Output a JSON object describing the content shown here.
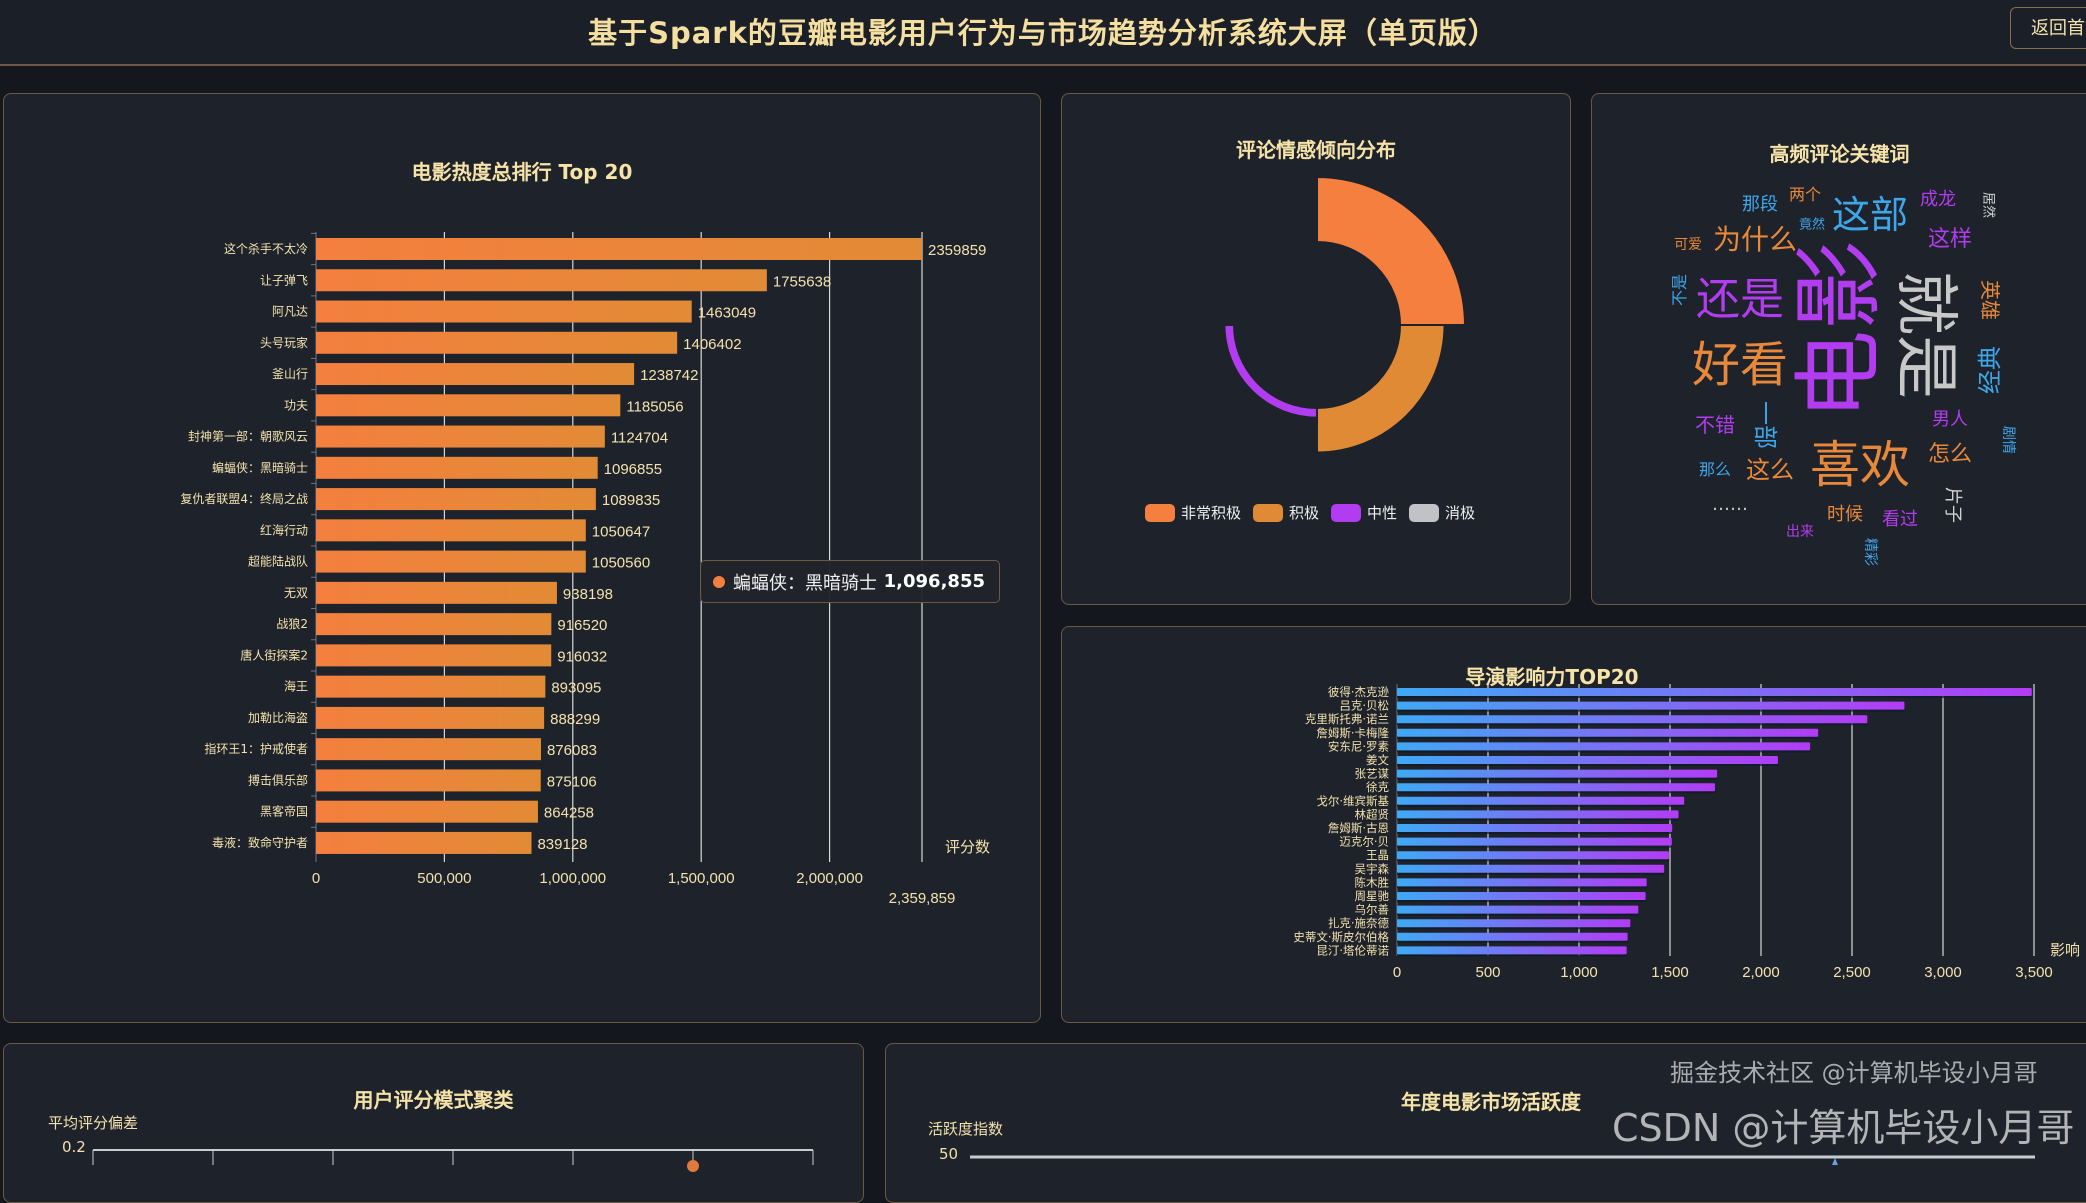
{
  "header": {
    "title": "基于Spark的豆瓣电影用户行为与市场趋势分析系统大屏（单页版）",
    "back_button": "返回首页"
  },
  "colors": {
    "accent_orange": "#f47f3e",
    "bar_orange_end": "#e28b36",
    "director_start": "#3fa9f5",
    "director_end": "#b23cf5",
    "title": "#f5e3a8",
    "panel_border": "#6b5843"
  },
  "popularity": {
    "title": "电影热度总排行 Top 20",
    "chart_data": {
      "type": "bar",
      "orientation": "horizontal",
      "categories": [
        "这个杀手不太冷",
        "让子弹飞",
        "阿凡达",
        "头号玩家",
        "釜山行",
        "功夫",
        "封神第一部：朝歌风云",
        "蝙蝠侠：黑暗骑士",
        "复仇者联盟4：终局之战",
        "红海行动",
        "超能陆战队",
        "无双",
        "战狼2",
        "唐人街探案2",
        "海王",
        "加勒比海盗",
        "指环王1：护戒使者",
        "搏击俱乐部",
        "黑客帝国",
        "毒液：致命守护者"
      ],
      "values": [
        2359859,
        1755638,
        1463049,
        1406402,
        1238742,
        1185056,
        1124704,
        1096855,
        1089835,
        1050647,
        1050560,
        938198,
        916520,
        916032,
        893095,
        888299,
        876083,
        875106,
        864258,
        839128
      ],
      "value_labels": [
        "2359859",
        "1755638",
        "1463049",
        "1406402",
        "1238742",
        "1185056",
        "1124704",
        "1096855",
        "1089835",
        "1050647",
        "1050560",
        "938198",
        "916520",
        "916032",
        "893095",
        "888299",
        "876083",
        "875106",
        "864258",
        "839128"
      ],
      "xlabel": "评分数",
      "xlim": [
        0,
        2359859
      ],
      "x_ticks": [
        "0",
        "500,000",
        "1,000,000",
        "1,500,000",
        "2,000,000",
        "2,359,859"
      ],
      "x_tick_values": [
        0,
        500000,
        1000000,
        1500000,
        2000000,
        2359859
      ],
      "grid": true
    },
    "tooltip": {
      "name": "蝙蝠侠：黑暗骑士",
      "value": "1,096,855"
    }
  },
  "sentiment": {
    "title": "评论情感倾向分布",
    "chart_data": {
      "type": "pie",
      "rose": true,
      "categories": [
        "非常积极",
        "积极",
        "中性",
        "消极"
      ],
      "values": [
        54,
        37,
        8,
        1
      ],
      "colors": [
        "#f47f3e",
        "#e08a35",
        "#b13cf0",
        "#c0c2c6"
      ],
      "legend_placement": "bottom"
    }
  },
  "wordcloud": {
    "title": "高频评论关键词",
    "words": [
      {
        "text": "电影",
        "color": "#b13cf0"
      },
      {
        "text": "就是",
        "color": "#c8c8c8"
      },
      {
        "text": "还是",
        "color": "#b13cf0"
      },
      {
        "text": "好看",
        "color": "#e8883a"
      },
      {
        "text": "喜欢",
        "color": "#e8883a"
      },
      {
        "text": "这部",
        "color": "#3ea6ea"
      },
      {
        "text": "为什么",
        "color": "#e8883a"
      },
      {
        "text": "这样",
        "color": "#b13cf0"
      },
      {
        "text": "英雄",
        "color": "#e8883a"
      },
      {
        "text": "经典",
        "color": "#3ea6ea"
      },
      {
        "text": "男人",
        "color": "#b13cf0"
      },
      {
        "text": "怎么",
        "color": "#e8883a"
      },
      {
        "text": "剧情",
        "color": "#3ea6ea"
      },
      {
        "text": "片子",
        "color": "#d0d0d0"
      },
      {
        "text": "看过",
        "color": "#b13cf0"
      },
      {
        "text": "时候",
        "color": "#e8883a"
      },
      {
        "text": "这么",
        "color": "#e8883a"
      },
      {
        "text": "那么",
        "color": "#3ea6ea"
      },
      {
        "text": "出来",
        "color": "#b13cf0"
      },
      {
        "text": "精彩",
        "color": "#3ea6ea"
      },
      {
        "text": "不错",
        "color": "#b13cf0"
      },
      {
        "text": "一部",
        "color": "#3ea6ea"
      },
      {
        "text": "……",
        "color": "#c8c8c8"
      },
      {
        "text": "不是",
        "color": "#3ea6ea"
      },
      {
        "text": "可爱",
        "color": "#e8883a"
      },
      {
        "text": "那段",
        "color": "#3ea6ea"
      },
      {
        "text": "两个",
        "color": "#e8883a"
      },
      {
        "text": "竟然",
        "color": "#3ea6ea"
      },
      {
        "text": "成龙",
        "color": "#b13cf0"
      },
      {
        "text": "居然",
        "color": "#d0d0d0"
      }
    ]
  },
  "directors": {
    "title": "导演影响力TOP20",
    "chart_data": {
      "type": "bar",
      "orientation": "horizontal",
      "categories": [
        "彼得·杰克逊",
        "吕克·贝松",
        "克里斯托弗·诺兰",
        "詹姆斯·卡梅隆",
        "安东尼·罗素",
        "姜文",
        "张艺谋",
        "徐克",
        "戈尔·维宾斯基",
        "林超贤",
        "詹姆斯·古恩",
        "迈克尔·贝",
        "王晶",
        "吴宇森",
        "陈木胜",
        "周星驰",
        "乌尔善",
        "扎克·施奈德",
        "史蒂文·斯皮尔伯格",
        "昆汀·塔伦蒂诺"
      ],
      "values": [
        3488,
        2788,
        2584,
        2314,
        2270,
        2093,
        1759,
        1747,
        1578,
        1547,
        1512,
        1510,
        1494,
        1468,
        1372,
        1366,
        1326,
        1282,
        1267,
        1262
      ],
      "xlabel": "影响",
      "xlim": [
        0,
        3500
      ],
      "x_ticks": [
        "0",
        "500",
        "1,000",
        "1,500",
        "2,000",
        "2,500",
        "3,000",
        "3,500"
      ],
      "grid": true
    }
  },
  "clusters": {
    "title": "用户评分模式聚类",
    "chart_data": {
      "type": "scatter",
      "ylabel": "平均评分偏差",
      "y_ticks": [
        "0.2"
      ]
    }
  },
  "activity": {
    "title": "年度电影市场活跃度",
    "chart_data": {
      "type": "line",
      "ylabel": "活跃度指数",
      "y_ticks": [
        "50"
      ]
    }
  },
  "watermark": {
    "primary": "CSDN @计算机毕设小月哥",
    "secondary": "掘金技术社区 @计算机毕设小月哥"
  }
}
